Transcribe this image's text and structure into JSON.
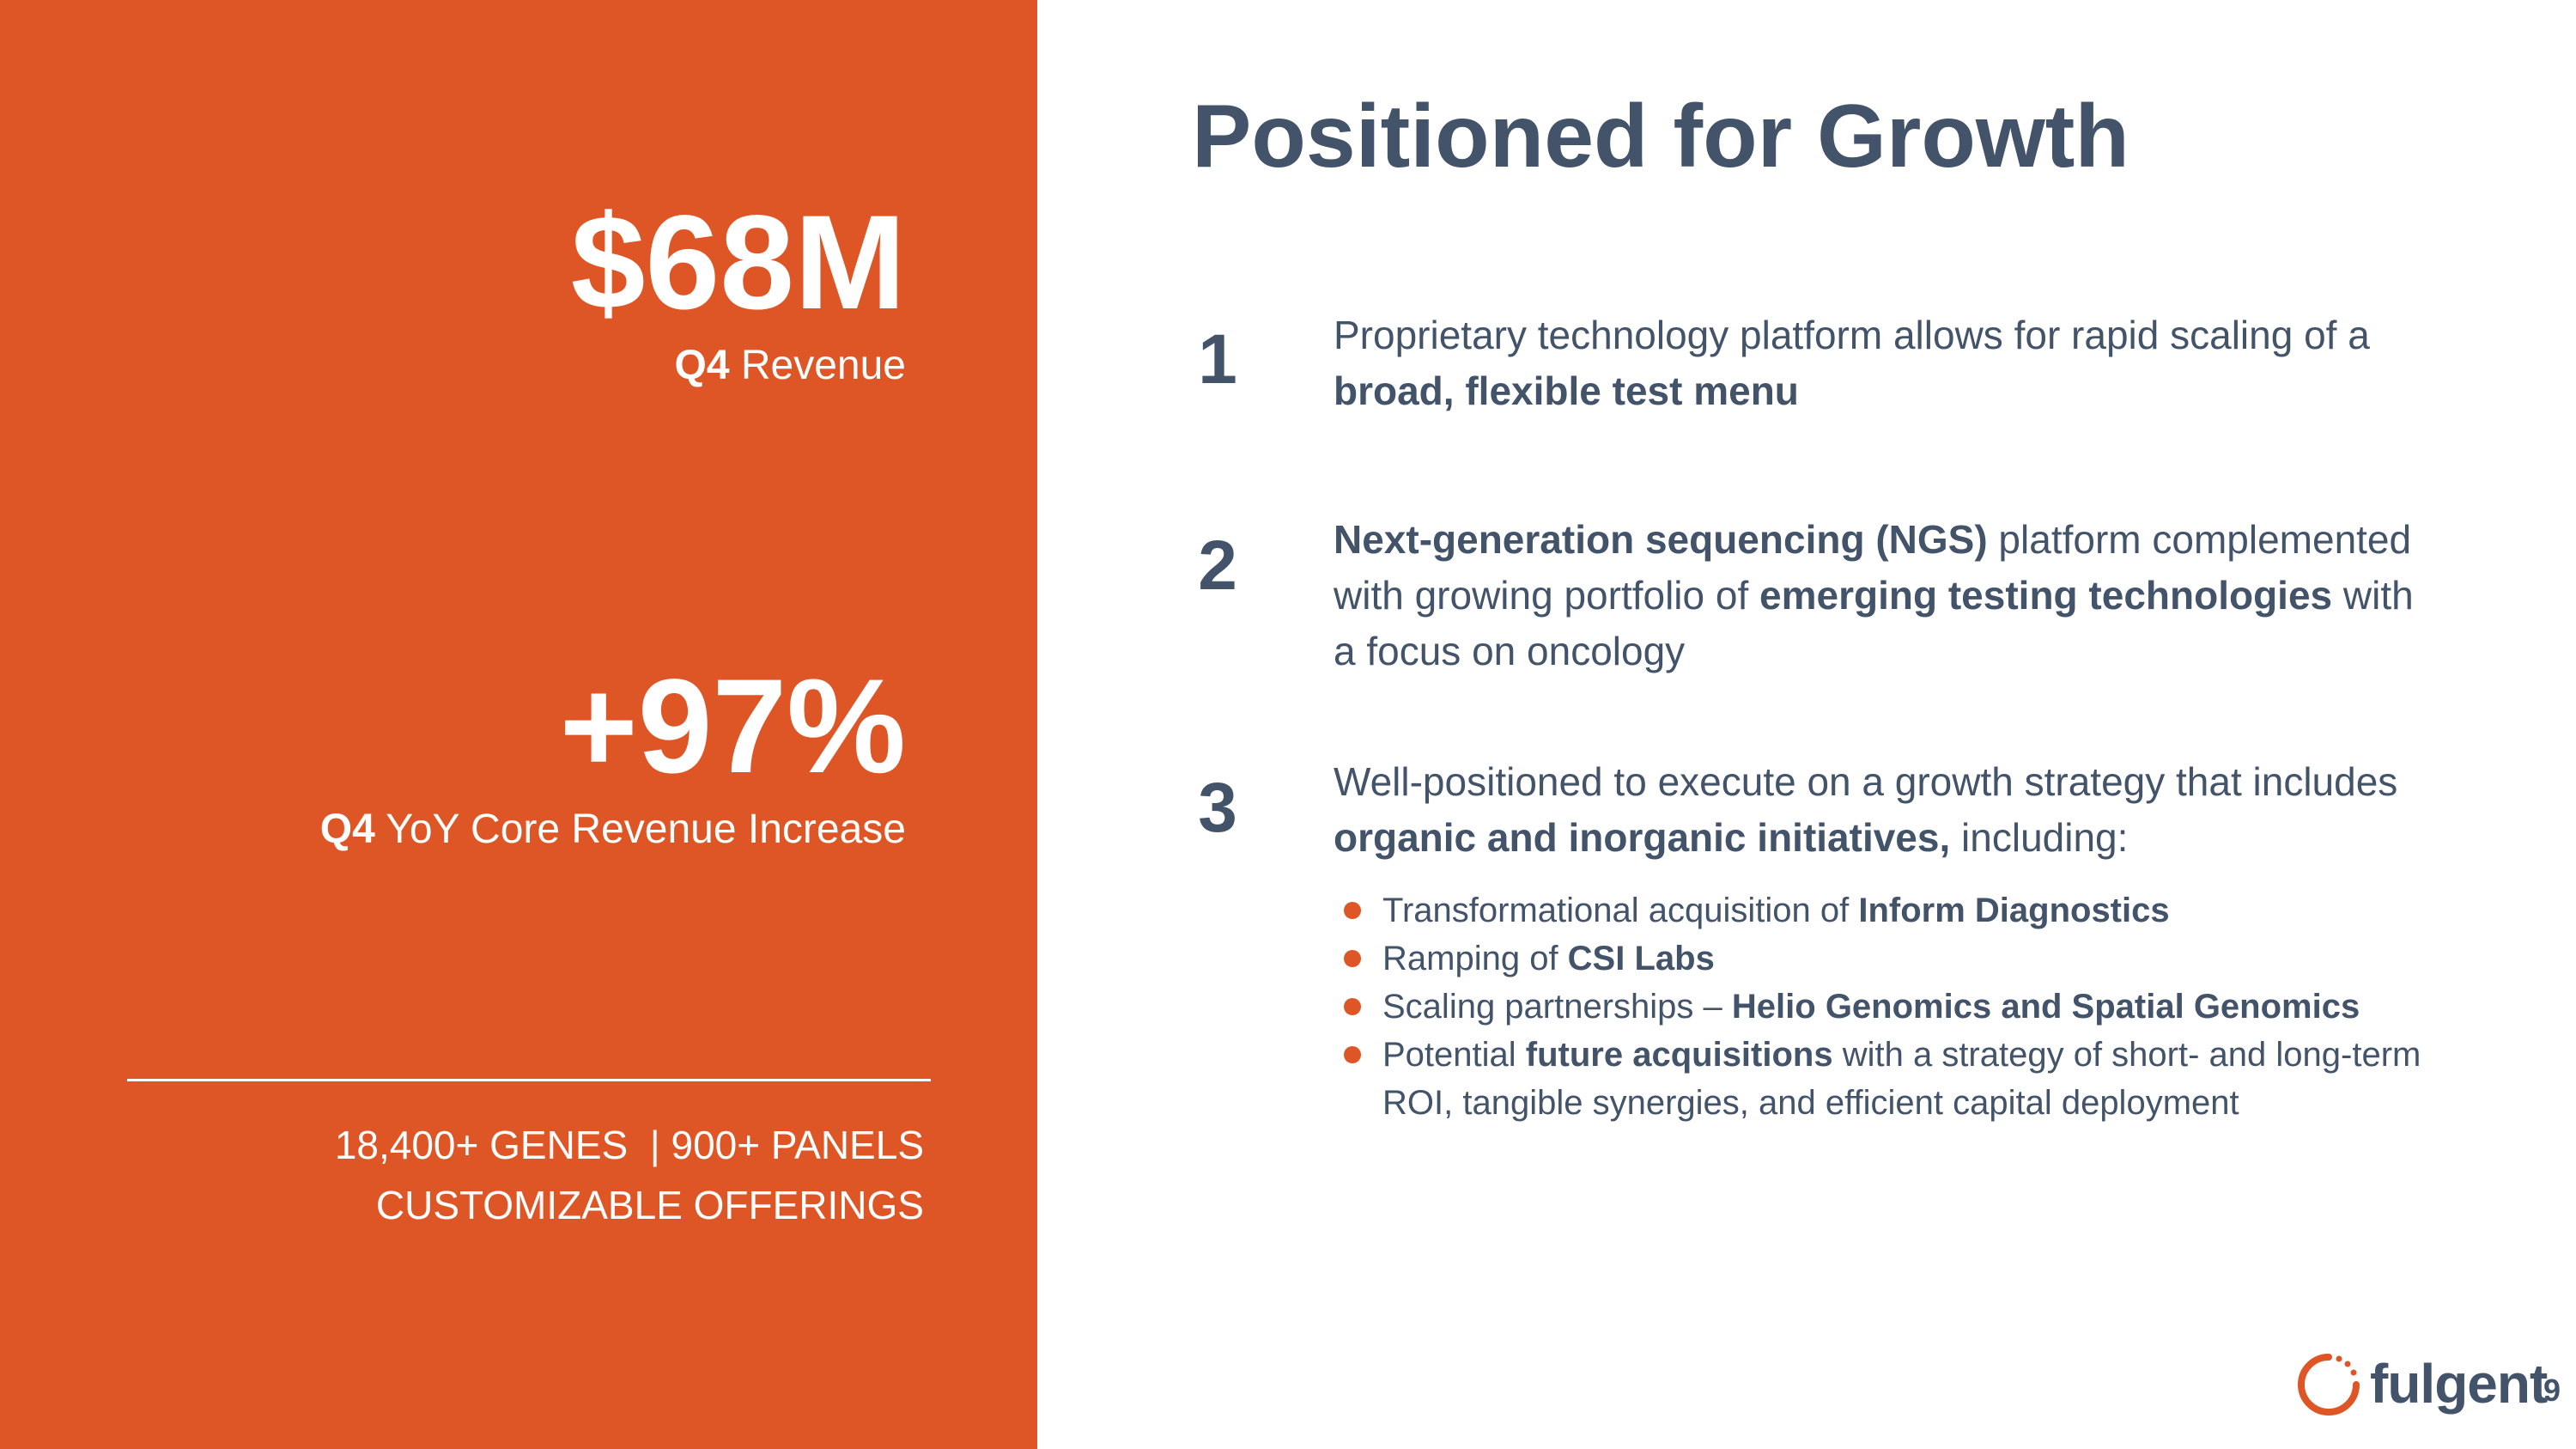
{
  "left": {
    "stat1": {
      "value": "$68M",
      "label_bold": "Q4",
      "label_rest": " Revenue"
    },
    "stat2": {
      "value": "+97%",
      "label_bold": "Q4",
      "label_rest": " YoY Core Revenue Increase"
    },
    "footer": {
      "line1": "18,400+ GENES  | 900+ PANELS",
      "line2": "CUSTOMIZABLE OFFERINGS"
    }
  },
  "title": "Positioned for Growth",
  "points": [
    {
      "num": "1",
      "t1": "Proprietary technology platform allows for rapid scaling of a ",
      "b1": "broad, flexible test menu"
    },
    {
      "num": "2",
      "b1": "Next-generation sequencing (NGS)",
      "t1": " platform complemented with growing portfolio of ",
      "b2": "emerging testing technologies",
      "t2": " with a focus on oncology"
    },
    {
      "num": "3",
      "t1": "Well-positioned to execute on a growth strategy that includes ",
      "b1": "organic and inorganic initiatives,",
      "t2": " including:"
    }
  ],
  "bullets": [
    {
      "t1": "Transformational acquisition of ",
      "b1": "Inform Diagnostics"
    },
    {
      "t1": "Ramping of ",
      "b1": "CSI Labs"
    },
    {
      "t1": "Scaling partnerships – ",
      "b1": "Helio Genomics and Spatial Genomics"
    },
    {
      "t1": "Potential ",
      "b1": "future acquisitions",
      "t2": " with a strategy of short- and long-term ROI, tangible synergies, and efficient capital deployment"
    }
  ],
  "logo": {
    "text": "fulgent",
    "icon": "fulgent-ring-icon"
  },
  "page_number": "9",
  "colors": {
    "accent": "#de5626",
    "text": "#43536a"
  }
}
